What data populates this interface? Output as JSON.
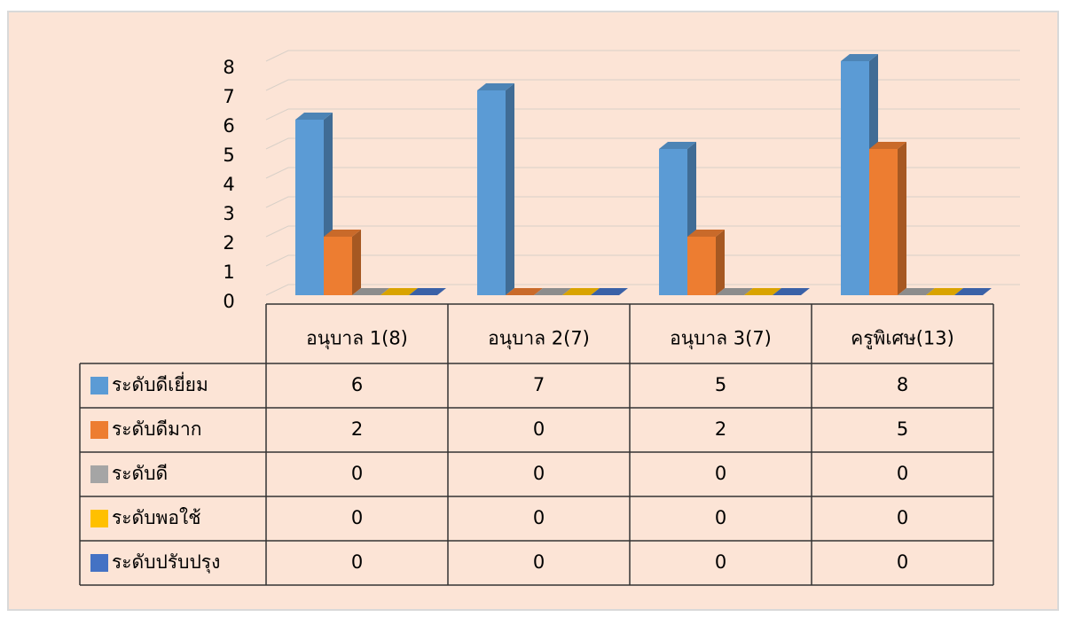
{
  "chart_data": {
    "type": "bar3d",
    "categories": [
      "อนุบาล 1(8)",
      "อนุบาล 2(7)",
      "อนุบาล 3(7)",
      "ครูพิเศษ(13)"
    ],
    "series": [
      {
        "name": "ระดับดีเยี่ยม",
        "color": "#5b9bd5",
        "values": [
          6,
          7,
          5,
          8
        ]
      },
      {
        "name": "ระดับดีมาก",
        "color": "#ed7d31",
        "values": [
          2,
          0,
          2,
          5
        ]
      },
      {
        "name": "ระดับดี",
        "color": "#a5a5a5",
        "values": [
          0,
          0,
          0,
          0
        ]
      },
      {
        "name": "ระดับพอใช้",
        "color": "#ffc000",
        "values": [
          0,
          0,
          0,
          0
        ]
      },
      {
        "name": "ระดับปรับปรุง",
        "color": "#4472c4",
        "values": [
          0,
          0,
          0,
          0
        ]
      }
    ],
    "ylim": [
      0,
      8
    ],
    "yticks": [
      0,
      1,
      2,
      3,
      4,
      5,
      6,
      7,
      8
    ],
    "grid": true
  }
}
